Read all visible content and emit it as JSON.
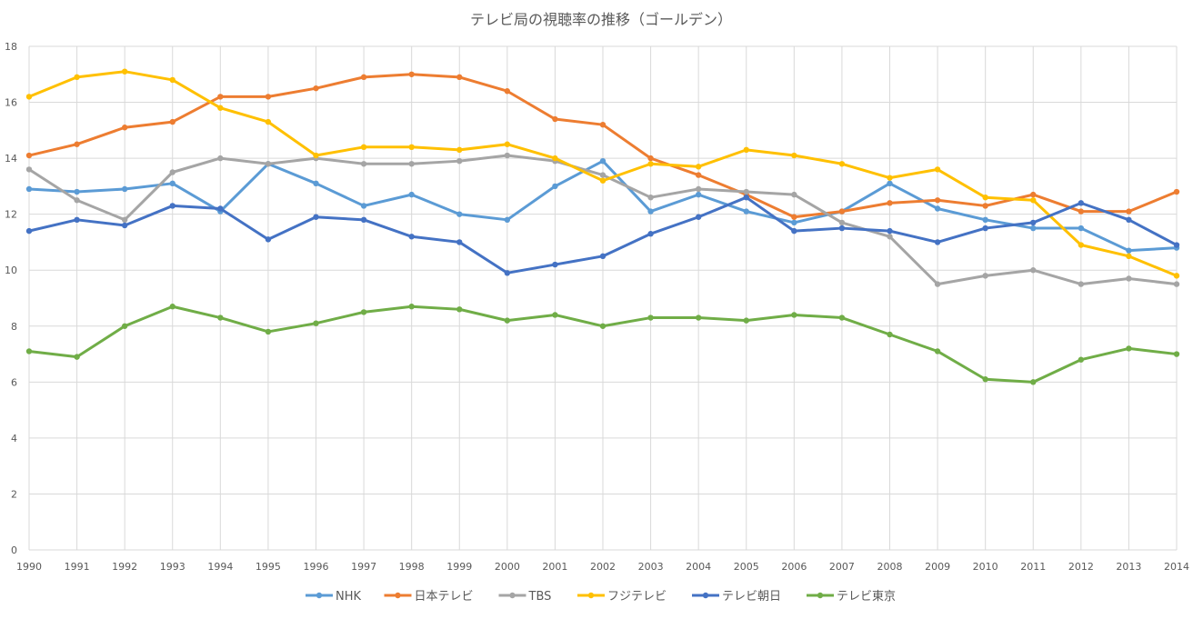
{
  "chart_data": {
    "type": "line",
    "title": "テレビ局の視聴率の推移（ゴールデン）",
    "xlabel": "",
    "ylabel": "",
    "ylim": [
      0,
      18
    ],
    "yticks": [
      0,
      2,
      4,
      6,
      8,
      10,
      12,
      14,
      16,
      18
    ],
    "grid": true,
    "legend_position": "bottom",
    "x": [
      "1990",
      "1991",
      "1992",
      "1993",
      "1994",
      "1995",
      "1996",
      "1997",
      "1998",
      "1999",
      "2000",
      "2001",
      "2002",
      "2003",
      "2004",
      "2005",
      "2006",
      "2007",
      "2008",
      "2009",
      "2010",
      "2011",
      "2012",
      "2013",
      "2014"
    ],
    "series": [
      {
        "name": "NHK",
        "color": "#5b9bd5",
        "values": [
          12.9,
          12.8,
          12.9,
          13.1,
          12.1,
          13.8,
          13.1,
          12.3,
          12.7,
          12.0,
          11.8,
          13.0,
          13.9,
          12.1,
          12.7,
          12.1,
          11.7,
          12.1,
          13.1,
          12.2,
          11.8,
          11.5,
          11.5,
          10.7,
          10.8
        ]
      },
      {
        "name": "日本テレビ",
        "color": "#ed7d31",
        "values": [
          14.1,
          14.5,
          15.1,
          15.3,
          16.2,
          16.2,
          16.5,
          16.9,
          17.0,
          16.9,
          16.4,
          15.4,
          15.2,
          14.0,
          13.4,
          12.7,
          11.9,
          12.1,
          12.4,
          12.5,
          12.3,
          12.7,
          12.1,
          12.1,
          12.8
        ]
      },
      {
        "name": "TBS",
        "color": "#a5a5a5",
        "values": [
          13.6,
          12.5,
          11.8,
          13.5,
          14.0,
          13.8,
          14.0,
          13.8,
          13.8,
          13.9,
          14.1,
          13.9,
          13.4,
          12.6,
          12.9,
          12.8,
          12.7,
          11.7,
          11.2,
          9.5,
          9.8,
          10.0,
          9.5,
          9.7,
          9.5
        ]
      },
      {
        "name": "フジテレビ",
        "color": "#ffc000",
        "values": [
          16.2,
          16.9,
          17.1,
          16.8,
          15.8,
          15.3,
          14.1,
          14.4,
          14.4,
          14.3,
          14.5,
          14.0,
          13.2,
          13.8,
          13.7,
          14.3,
          14.1,
          13.8,
          13.3,
          13.6,
          12.6,
          12.5,
          10.9,
          10.5,
          9.8
        ]
      },
      {
        "name": "テレビ朝日",
        "color": "#4472c4",
        "values": [
          11.4,
          11.8,
          11.6,
          12.3,
          12.2,
          11.1,
          11.9,
          11.8,
          11.2,
          11.0,
          9.9,
          10.2,
          10.5,
          11.3,
          11.9,
          12.6,
          11.4,
          11.5,
          11.4,
          11.0,
          11.5,
          11.7,
          12.4,
          11.8,
          10.9
        ]
      },
      {
        "name": "テレビ東京",
        "color": "#70ad47",
        "values": [
          7.1,
          6.9,
          8.0,
          8.7,
          8.3,
          7.8,
          8.1,
          8.5,
          8.7,
          8.6,
          8.2,
          8.4,
          8.0,
          8.3,
          8.3,
          8.2,
          8.4,
          8.3,
          7.7,
          7.1,
          6.1,
          6.0,
          6.8,
          7.2,
          7.0
        ]
      }
    ]
  }
}
